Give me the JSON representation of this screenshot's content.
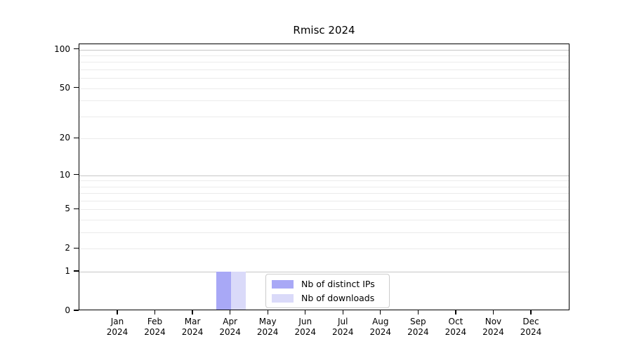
{
  "title": "Rmisc 2024",
  "chart_data": {
    "type": "bar",
    "title": "Rmisc 2024",
    "x_months": [
      "Jan",
      "Feb",
      "Mar",
      "Apr",
      "May",
      "Jun",
      "Jul",
      "Aug",
      "Sep",
      "Oct",
      "Nov",
      "Dec"
    ],
    "x_year": "2024",
    "series": [
      {
        "name": "Nb of distinct IPs",
        "color": "#a8a8f6",
        "values": [
          0,
          0,
          0,
          1,
          0,
          0,
          0,
          0,
          0,
          0,
          0,
          0
        ]
      },
      {
        "name": "Nb of downloads",
        "color": "#dadaf9",
        "values": [
          0,
          0,
          0,
          1,
          0,
          0,
          0,
          0,
          0,
          0,
          0,
          0
        ]
      }
    ],
    "y_scale": "log1p",
    "y_ticks": [
      0,
      1,
      2,
      5,
      10,
      20,
      50,
      100
    ],
    "y_major_gridlines": [
      1,
      10,
      100
    ],
    "y_minor_gridlines": [
      2,
      3,
      4,
      5,
      6,
      7,
      8,
      9,
      20,
      30,
      40,
      50,
      60,
      70,
      80,
      90
    ],
    "ylim": [
      0,
      110
    ],
    "grid": true,
    "legend_position": "lower center",
    "colors": {
      "major_grid": "#c6c6c6",
      "minor_grid": "#ebebeb",
      "axis": "#000000",
      "legend_border": "#cccccc"
    }
  }
}
